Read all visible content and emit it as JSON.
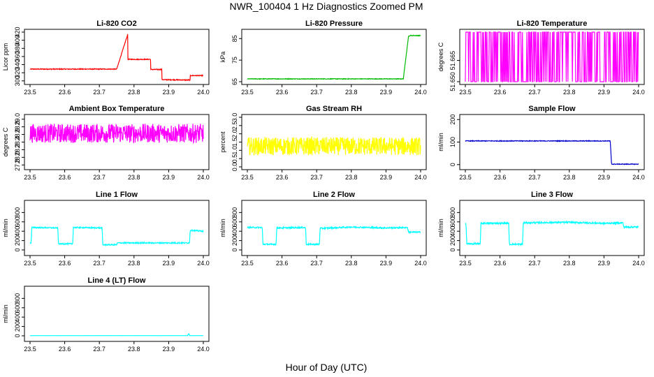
{
  "figure": {
    "title": "NWR_100404  1 Hz Diagnostics Zoomed PM",
    "xlabel": "Hour of Day (UTC)"
  },
  "chart_data": [
    {
      "id": "co2",
      "type": "line",
      "title": "Li-820 CO2",
      "ylabel": "Licor ppm",
      "color": "#ff0000",
      "xlim": [
        23.5,
        24.0
      ],
      "ylim": [
        298,
        420
      ],
      "xticks": [
        "23.5",
        "23.6",
        "23.7",
        "23.8",
        "23.9",
        "24.0"
      ],
      "yticks": [
        "300",
        "320",
        "340",
        "360",
        "380",
        "400",
        "420"
      ],
      "series": [
        {
          "name": "Li-820 CO2",
          "x": [
            23.5,
            23.75,
            23.75,
            23.782,
            23.782,
            23.782,
            23.812,
            23.812,
            23.848,
            23.848,
            23.88,
            23.88,
            23.962,
            23.962,
            24.0
          ],
          "y": [
            329,
            329,
            329,
            415,
            415,
            353,
            353,
            353,
            353,
            328,
            328,
            303,
            302,
            313,
            313
          ],
          "noise": 1
        }
      ]
    },
    {
      "id": "pressure",
      "type": "line",
      "title": "Li-820 Pressure",
      "ylabel": "kPa",
      "color": "#00bb00",
      "xlim": [
        23.5,
        24.0
      ],
      "ylim": [
        65,
        88
      ],
      "xticks": [
        "23.5",
        "23.6",
        "23.7",
        "23.8",
        "23.9",
        "24.0"
      ],
      "yticks": [
        "65",
        "75",
        "85"
      ],
      "series": [
        {
          "name": "Li-820 Pressure",
          "x": [
            23.5,
            23.95,
            23.965,
            23.97,
            24.0
          ],
          "y": [
            66.3,
            66.3,
            86.0,
            86.4,
            86.4
          ],
          "noise": 0.15
        }
      ]
    },
    {
      "id": "temperature",
      "type": "line",
      "title": "Li-820 Temperature",
      "ylabel": "degrees C",
      "color": "#ff00ff",
      "xlim": [
        23.5,
        24.0
      ],
      "ylim": [
        51.65,
        51.685
      ],
      "xticks": [
        "23.5",
        "23.6",
        "23.7",
        "23.8",
        "23.9",
        "24.0"
      ],
      "yticks": [
        "51.650",
        "51.665"
      ],
      "series": [
        {
          "name": "Li-820 Temperature",
          "x": [
            23.5,
            24.0
          ],
          "y": [
            51.65,
            51.685
          ],
          "mode": "toggle"
        }
      ]
    },
    {
      "id": "ambient",
      "type": "line",
      "title": "Ambient Box Temperature",
      "ylabel": "degrees C",
      "color": "#ff00ff",
      "xlim": [
        23.5,
        24.0
      ],
      "ylim": [
        27.75,
        29.05
      ],
      "xticks": [
        "23.5",
        "23.6",
        "23.7",
        "23.8",
        "23.9",
        "24.0"
      ],
      "yticks": [
        "27.8",
        "28.0",
        "28.2",
        "28.4",
        "28.6",
        "28.8",
        "29.0"
      ],
      "series": [
        {
          "name": "Ambient Box Temperature",
          "x": [
            23.5,
            24.0
          ],
          "y": [
            28.63,
            28.63
          ],
          "noise": 0.25
        }
      ]
    },
    {
      "id": "rh",
      "type": "line",
      "title": "Gas Stream RH",
      "ylabel": "percent",
      "color": "#ffff00",
      "xlim": [
        23.5,
        24.0
      ],
      "ylim": [
        0,
        3
      ],
      "xticks": [
        "23.5",
        "23.6",
        "23.7",
        "23.8",
        "23.9",
        "24.0"
      ],
      "yticks": [
        "0.0",
        "0.5",
        "1.0",
        "1.5",
        "2.0",
        "2.5",
        "3.0"
      ],
      "series": [
        {
          "name": "Gas Stream RH",
          "x": [
            23.5,
            24.0
          ],
          "y": [
            1.25,
            1.25
          ],
          "noise": 0.55
        }
      ]
    },
    {
      "id": "sample",
      "type": "line",
      "title": "Sample Flow",
      "ylabel": "ml/min",
      "color": "#0000cc",
      "xlim": [
        23.5,
        24.0
      ],
      "ylim": [
        -10,
        210
      ],
      "xticks": [
        "23.5",
        "23.6",
        "23.7",
        "23.8",
        "23.9",
        "24.0"
      ],
      "yticks": [
        "0",
        "100",
        "200"
      ],
      "series": [
        {
          "name": "Sample Flow",
          "x": [
            23.5,
            23.918,
            23.922,
            24.0
          ],
          "y": [
            105,
            105,
            2,
            2
          ],
          "noise": 1.5
        }
      ]
    },
    {
      "id": "line1",
      "type": "line",
      "title": "Line 1 Flow",
      "ylabel": "ml/min",
      "color": "#00ffff",
      "xlim": [
        23.5,
        24.0
      ],
      "ylim": [
        -60,
        1000
      ],
      "xticks": [
        "23.5",
        "23.6",
        "23.7",
        "23.8",
        "23.9",
        "24.0"
      ],
      "yticks": [
        "0",
        "200",
        "400",
        "600",
        "800"
      ],
      "series": [
        {
          "name": "Line 1 Flow",
          "x": [
            23.5,
            23.503,
            23.505,
            23.58,
            23.582,
            23.623,
            23.625,
            23.708,
            23.71,
            23.75,
            23.752,
            23.96,
            23.962,
            24.0
          ],
          "y": [
            150,
            150,
            480,
            470,
            130,
            130,
            480,
            470,
            110,
            110,
            150,
            150,
            420,
            400
          ],
          "noise": 12
        }
      ]
    },
    {
      "id": "line2",
      "type": "line",
      "title": "Line 2 Flow",
      "ylabel": "ml/min",
      "color": "#00ffff",
      "xlim": [
        23.5,
        24.0
      ],
      "ylim": [
        -60,
        1000
      ],
      "xticks": [
        "23.5",
        "23.6",
        "23.7",
        "23.8",
        "23.9",
        "24.0"
      ],
      "yticks": [
        "0",
        "200",
        "400",
        "600",
        "800"
      ],
      "series": [
        {
          "name": "Line 2 Flow",
          "x": [
            23.5,
            23.543,
            23.545,
            23.583,
            23.585,
            23.668,
            23.67,
            23.708,
            23.71,
            23.8,
            23.9,
            23.962,
            23.965,
            24.0
          ],
          "y": [
            480,
            480,
            120,
            120,
            470,
            480,
            120,
            120,
            460,
            490,
            470,
            480,
            380,
            380
          ],
          "noise": 14
        }
      ]
    },
    {
      "id": "line3",
      "type": "line",
      "title": "Line 3 Flow",
      "ylabel": "ml/min",
      "color": "#00ffff",
      "xlim": [
        23.5,
        24.0
      ],
      "ylim": [
        -60,
        1000
      ],
      "xticks": [
        "23.5",
        "23.6",
        "23.7",
        "23.8",
        "23.9",
        "24.0"
      ],
      "yticks": [
        "0",
        "200",
        "400",
        "600",
        "800"
      ],
      "series": [
        {
          "name": "Line 3 Flow",
          "x": [
            23.5,
            23.502,
            23.504,
            23.543,
            23.545,
            23.625,
            23.627,
            23.665,
            23.667,
            23.8,
            23.9,
            23.955,
            23.957,
            24.0
          ],
          "y": [
            560,
            560,
            130,
            130,
            570,
            570,
            120,
            120,
            580,
            590,
            570,
            580,
            490,
            490
          ],
          "noise": 16
        }
      ]
    },
    {
      "id": "line4",
      "type": "line",
      "title": "Line 4 (LT) Flow",
      "ylabel": "ml/min",
      "color": "#00ffff",
      "xlim": [
        23.5,
        24.0
      ],
      "ylim": [
        -60,
        1000
      ],
      "xticks": [
        "23.5",
        "23.6",
        "23.7",
        "23.8",
        "23.9",
        "24.0"
      ],
      "yticks": [
        "0",
        "200",
        "400",
        "600",
        "800"
      ],
      "series": [
        {
          "name": "Line 4 (LT) Flow",
          "x": [
            23.5,
            23.955,
            23.958,
            23.961,
            24.0
          ],
          "y": [
            4,
            4,
            50,
            4,
            4
          ],
          "noise": 1
        }
      ]
    }
  ]
}
